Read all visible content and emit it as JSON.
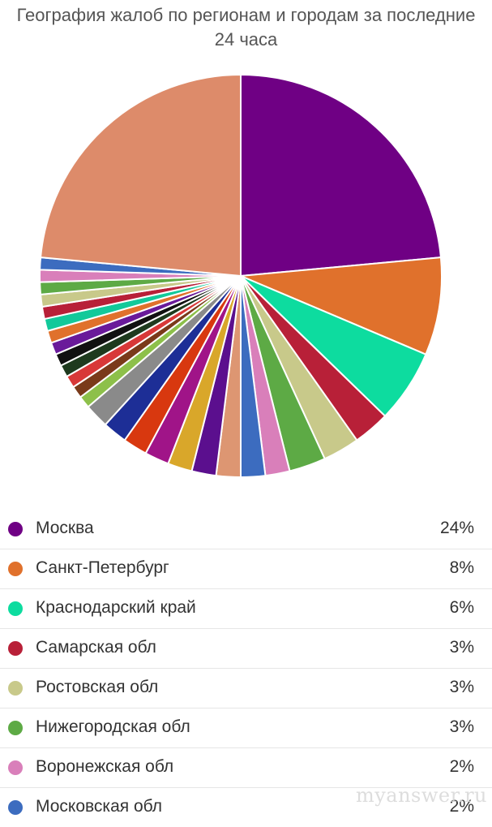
{
  "chart_data": {
    "type": "pie",
    "title": "География жалоб по регионам и городам за последние 24 часа",
    "start_angle_deg": 0,
    "direction": "clockwise",
    "slices": [
      {
        "label": "Москва",
        "value": 24,
        "color": "#6f0084"
      },
      {
        "label": "Санкт-Петербург",
        "value": 8,
        "color": "#e0712c"
      },
      {
        "label": "Краснодарский край",
        "value": 6,
        "color": "#0ddc9f"
      },
      {
        "label": "Самарская обл",
        "value": 3,
        "color": "#b82038"
      },
      {
        "label": "Ростовская обл",
        "value": 3,
        "color": "#c8c98a"
      },
      {
        "label": "Нижегородская обл",
        "value": 3,
        "color": "#5daa45"
      },
      {
        "label": "Воронежская обл",
        "value": 2,
        "color": "#d97fba"
      },
      {
        "label": "Московская обл",
        "value": 2,
        "color": "#3c6cbf"
      },
      {
        "value": 2,
        "color": "#dd9672"
      },
      {
        "value": 2,
        "color": "#5b0f8e"
      },
      {
        "value": 2,
        "color": "#d9a72a"
      },
      {
        "value": 2,
        "color": "#a01488"
      },
      {
        "value": 2,
        "color": "#d8380f"
      },
      {
        "value": 2,
        "color": "#1d2e96"
      },
      {
        "value": 2,
        "color": "#8a8a8a"
      },
      {
        "value": 1,
        "color": "#8dc04a"
      },
      {
        "value": 1,
        "color": "#7a3a1a"
      },
      {
        "value": 1,
        "color": "#d83838"
      },
      {
        "value": 1,
        "color": "#1e3a1e"
      },
      {
        "value": 1,
        "color": "#111111"
      },
      {
        "value": 1,
        "color": "#6a1a9a"
      },
      {
        "value": 1,
        "color": "#e0712c"
      },
      {
        "value": 1,
        "color": "#12c99a"
      },
      {
        "value": 1,
        "color": "#b82038"
      },
      {
        "value": 1,
        "color": "#c8c98a"
      },
      {
        "value": 1,
        "color": "#5daa45"
      },
      {
        "value": 1,
        "color": "#d97fba"
      },
      {
        "value": 1,
        "color": "#3c6cbf"
      },
      {
        "value": 24,
        "color": "#dd8b6a"
      }
    ]
  },
  "legend": [
    {
      "label": "Москва",
      "value": "24%",
      "color": "#6f0084"
    },
    {
      "label": "Санкт-Петербург",
      "value": "8%",
      "color": "#e0712c"
    },
    {
      "label": "Краснодарский край",
      "value": "6%",
      "color": "#0ddc9f"
    },
    {
      "label": "Самарская обл",
      "value": "3%",
      "color": "#b82038"
    },
    {
      "label": "Ростовская обл",
      "value": "3%",
      "color": "#c8c98a"
    },
    {
      "label": "Нижегородская обл",
      "value": "3%",
      "color": "#5daa45"
    },
    {
      "label": "Воронежская обл",
      "value": "2%",
      "color": "#d97fba"
    },
    {
      "label": "Московская обл",
      "value": "2%",
      "color": "#3c6cbf"
    }
  ],
  "watermark": "myanswer.ru"
}
